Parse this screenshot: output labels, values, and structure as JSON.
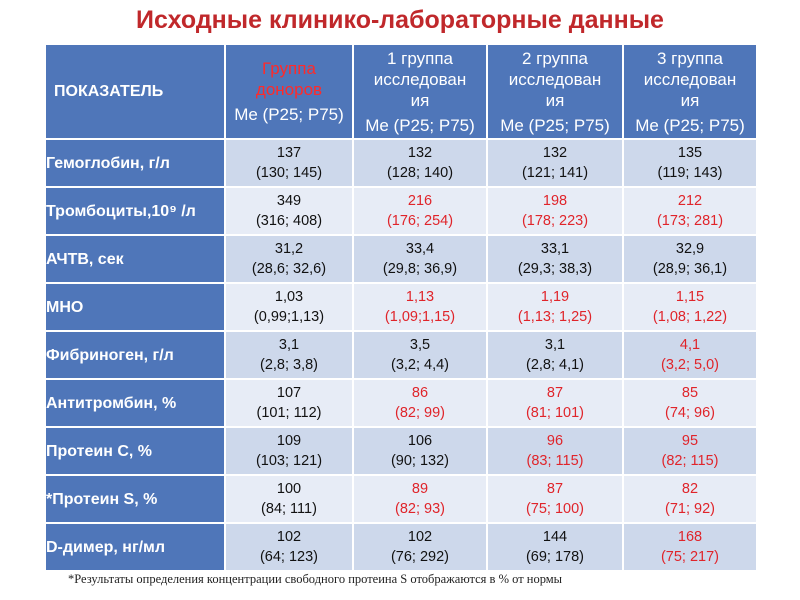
{
  "title": "Исходные клинико-лабораторные данные",
  "header": {
    "indicator": "ПОКАЗАТЕЛЬ",
    "donor_line1": "Группа",
    "donor_line2": "доноров",
    "group1_line1": "1 группа",
    "group1_line2": "исследован",
    "group1_line3": "ия",
    "group2_line1": "2 группа",
    "group2_line2": "исследован",
    "group2_line3": "ия",
    "group3_line1": "3 группа",
    "group3_line2": "исследован",
    "group3_line3": "ия",
    "me": "Me (P25; P75)"
  },
  "rows": [
    {
      "label": "Гемоглобин, г/л",
      "cells": [
        {
          "median": "137",
          "iqr": "(130; 145)",
          "highlight": false
        },
        {
          "median": "132",
          "iqr": "(128; 140)",
          "highlight": false
        },
        {
          "median": "132",
          "iqr": "(121; 141)",
          "highlight": false
        },
        {
          "median": "135",
          "iqr": "(119; 143)",
          "highlight": false
        }
      ]
    },
    {
      "label": "Тромбоциты,10⁹ /л",
      "cells": [
        {
          "median": "349",
          "iqr": "(316; 408)",
          "highlight": false
        },
        {
          "median": "216",
          "iqr": "(176; 254)",
          "highlight": true
        },
        {
          "median": "198",
          "iqr": "(178; 223)",
          "highlight": true
        },
        {
          "median": "212",
          "iqr": "(173; 281)",
          "highlight": true
        }
      ]
    },
    {
      "label": "АЧТВ, сек",
      "cells": [
        {
          "median": "31,2",
          "iqr": "(28,6; 32,6)",
          "highlight": false
        },
        {
          "median": "33,4",
          "iqr": "(29,8; 36,9)",
          "highlight": false
        },
        {
          "median": "33,1",
          "iqr": "(29,3; 38,3)",
          "highlight": false
        },
        {
          "median": "32,9",
          "iqr": "(28,9; 36,1)",
          "highlight": false
        }
      ]
    },
    {
      "label": "МНО",
      "cells": [
        {
          "median": "1,03",
          "iqr": "(0,99;1,13)",
          "highlight": false
        },
        {
          "median": "1,13",
          "iqr": "(1,09;1,15)",
          "highlight": true
        },
        {
          "median": "1,19",
          "iqr": "(1,13; 1,25)",
          "highlight": true
        },
        {
          "median": "1,15",
          "iqr": "(1,08; 1,22)",
          "highlight": true
        }
      ]
    },
    {
      "label": "Фибриноген, г/л",
      "cells": [
        {
          "median": "3,1",
          "iqr": "(2,8; 3,8)",
          "highlight": false
        },
        {
          "median": "3,5",
          "iqr": "(3,2; 4,4)",
          "highlight": false
        },
        {
          "median": "3,1",
          "iqr": "(2,8; 4,1)",
          "highlight": false
        },
        {
          "median": "4,1",
          "iqr": "(3,2; 5,0)",
          "highlight": true
        }
      ]
    },
    {
      "label": "Антитромбин, %",
      "cells": [
        {
          "median": "107",
          "iqr": "(101; 112)",
          "highlight": false
        },
        {
          "median": "86",
          "iqr": "(82; 99)",
          "highlight": true
        },
        {
          "median": "87",
          "iqr": "(81; 101)",
          "highlight": true
        },
        {
          "median": "85",
          "iqr": "(74; 96)",
          "highlight": true
        }
      ]
    },
    {
      "label": "Протеин C, %",
      "cells": [
        {
          "median": "109",
          "iqr": "(103; 121)",
          "highlight": false
        },
        {
          "median": "106",
          "iqr": "(90; 132)",
          "highlight": false
        },
        {
          "median": "96",
          "iqr": "(83; 115)",
          "highlight": true
        },
        {
          "median": "95",
          "iqr": "(82; 115)",
          "highlight": true
        }
      ]
    },
    {
      "label": "*Протеин S, %",
      "cells": [
        {
          "median": "100",
          "iqr": "(84; 111)",
          "highlight": false
        },
        {
          "median": "89",
          "iqr": "(82; 93)",
          "highlight": true
        },
        {
          "median": "87",
          "iqr": "(75; 100)",
          "highlight": true
        },
        {
          "median": "82",
          "iqr": "(71; 92)",
          "highlight": true
        }
      ]
    },
    {
      "label": "D-димер, нг/мл",
      "cells": [
        {
          "median": "102",
          "iqr": "(64; 123)",
          "highlight": false
        },
        {
          "median": "102",
          "iqr": "(76; 292)",
          "highlight": false
        },
        {
          "median": "144",
          "iqr": "(69; 178)",
          "highlight": false
        },
        {
          "median": "168",
          "iqr": "(75; 217)",
          "highlight": true
        }
      ]
    }
  ],
  "footnote": "*Результаты определения концентрации свободного протеина S отображаются в % от нормы"
}
